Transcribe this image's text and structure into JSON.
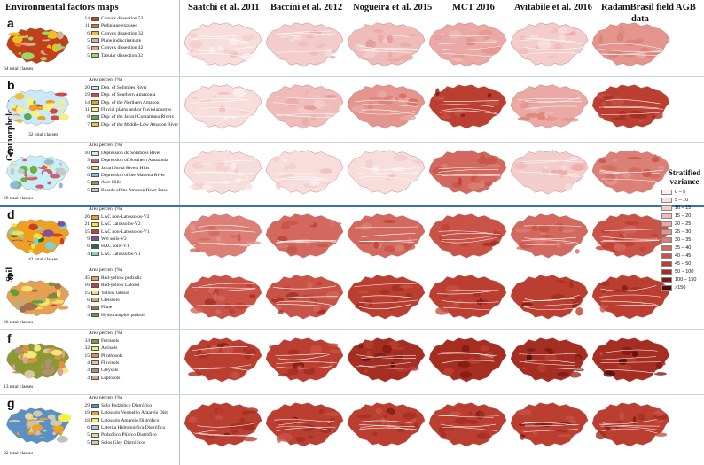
{
  "header": {
    "env_title": "Environmental factors maps",
    "columns": [
      "Saatchi et al. 2011",
      "Baccini et al. 2012",
      "Nogueira et al. 2015",
      "MCT 2016",
      "Avitabile et al.  2016",
      "RadamBrasil field AGB",
      "data"
    ]
  },
  "side_labels": {
    "geomorphology": "Geomorphology",
    "soil": "Soil"
  },
  "area_percent_label": "Area percent (%)",
  "rows": [
    {
      "letter": "a",
      "total": "64 total classes",
      "has_area_label": false,
      "legend": [
        {
          "pct": "14",
          "label": "Convex dissection 53",
          "color": "#c0401a"
        },
        {
          "pct": "11",
          "label": "Pediplane exposed",
          "color": "#e07a28"
        },
        {
          "pct": "6",
          "label": "Convex dissection 32",
          "color": "#f0c020"
        },
        {
          "pct": "5",
          "label": "Plane indiscriminate",
          "color": "#c8b8a0"
        },
        {
          "pct": "5",
          "label": "Convex dissection 42",
          "color": "#f09a80"
        },
        {
          "pct": "5",
          "label": "Tabular dissection 32",
          "color": "#9ad86a"
        }
      ]
    },
    {
      "letter": "b",
      "total": "32 total classes",
      "has_area_label": true,
      "legend": [
        {
          "pct": "20",
          "label": "Dep. of Solimões River",
          "color": "#c9e8f8"
        },
        {
          "pct": "19",
          "label": "Dep. of Southern Amazonia",
          "color": "#d04848"
        },
        {
          "pct": "14",
          "label": "Dep. of the Northern Amazon",
          "color": "#f0a020"
        },
        {
          "pct": "11",
          "label": "Fluvial plains and/or fluviolacustres",
          "color": "#f6f08a"
        },
        {
          "pct": "8",
          "label": "Dep. of the Javari-Contamana Rivers",
          "color": "#5aa85a"
        },
        {
          "pct": "7",
          "label": "Dep. of the Middle-Low Amazon River",
          "color": "#f0c040"
        }
      ]
    },
    {
      "letter": "c",
      "total": "69 total classes",
      "has_area_label": true,
      "legend": [
        {
          "pct": "10",
          "label": "Depression do Solimões River",
          "color": "#c8eef8"
        },
        {
          "pct": "9",
          "label": "Depression of Southern Amazonia",
          "color": "#d06070"
        },
        {
          "pct": "6",
          "label": "Javari/Juruá Rivers Hills",
          "color": "#f0e070"
        },
        {
          "pct": "6",
          "label": "Depression of the Madeira River",
          "color": "#90b8d8"
        },
        {
          "pct": "5",
          "label": "Acre Hills",
          "color": "#70b040"
        },
        {
          "pct": "5",
          "label": "Boards of the Amazon River Bass",
          "color": "#c8c8c8"
        }
      ]
    },
    {
      "letter": "d",
      "total": "42 total classes",
      "has_area_label": true,
      "legend": [
        {
          "pct": "26",
          "label": "LAC non-Latossolos-V2",
          "color": "#f0a020"
        },
        {
          "pct": "21",
          "label": "LAC Latossolos-V2",
          "color": "#f8e040"
        },
        {
          "pct": "15",
          "label": "LAC non-Latossolos-V1",
          "color": "#d04020"
        },
        {
          "pct": "9",
          "label": "Wet soils-V2",
          "color": "#8050a0"
        },
        {
          "pct": "6",
          "label": "HAC soils-V1",
          "color": "#207040"
        },
        {
          "pct": "4",
          "label": "LAC Latossolos-V1",
          "color": "#80d0d0"
        }
      ]
    },
    {
      "letter": "e",
      "total": "26 total classes",
      "has_area_label": true,
      "legend": [
        {
          "pct": "45",
          "label": "Red-yellow podzolic",
          "color": "#e8a050"
        },
        {
          "pct": "16",
          "label": "Red-yellow Latosol",
          "color": "#c04040"
        },
        {
          "pct": "15",
          "label": "Yellow latosol",
          "color": "#f8e070"
        },
        {
          "pct": "6",
          "label": "Gleissolo",
          "color": "#c8a878"
        },
        {
          "pct": "9",
          "label": "Plane",
          "color": "#a07050"
        },
        {
          "pct": "4",
          "label": "Hydromorphic podzol",
          "color": "#60a030"
        }
      ]
    },
    {
      "letter": "f",
      "total": "13 total classes",
      "has_area_label": true,
      "legend": [
        {
          "pct": "34",
          "label": "Ferrasols",
          "color": "#8a9a30"
        },
        {
          "pct": "32",
          "label": "Acrisols",
          "color": "#f0e878"
        },
        {
          "pct": "15",
          "label": "Plinthosols",
          "color": "#e09040"
        },
        {
          "pct": "4",
          "label": "Fluvisols",
          "color": "#d8c8a0"
        },
        {
          "pct": "4",
          "label": "Gleysols",
          "color": "#b09070"
        },
        {
          "pct": "4",
          "label": "Leptosols",
          "color": "#e0a090"
        }
      ]
    },
    {
      "letter": "g",
      "total": "32 total classes",
      "has_area_label": true,
      "legend": [
        {
          "pct": "29",
          "label": "Solo Podzólico Distrófico",
          "color": "#5a90c8"
        },
        {
          "pct": "19",
          "label": "Latossolo Vermelho Amarelo Dist.",
          "color": "#f0a020"
        },
        {
          "pct": "18",
          "label": "Latossolo Amarelo Distrófico",
          "color": "#f8f040"
        },
        {
          "pct": "6",
          "label": "Laterita Hidromórfica Distrófica",
          "color": "#c0c0c0"
        },
        {
          "pct": "5",
          "label": "Podzólico Plínico Distrófico",
          "color": "#e8d8a0"
        },
        {
          "pct": "5",
          "label": "Solos Gley Distróficos",
          "color": "#d8c8a8"
        }
      ]
    }
  ],
  "variance_legend": {
    "title1": "Stratified",
    "title2": "variance",
    "classes": [
      {
        "label": "0 – 5",
        "color": "#fbeeee"
      },
      {
        "label": "5 – 10",
        "color": "#f7dedd"
      },
      {
        "label": "10 – 15",
        "color": "#f3cdcb"
      },
      {
        "label": "15 – 20",
        "color": "#efbcb9"
      },
      {
        "label": "20 – 25",
        "color": "#eaa9a4"
      },
      {
        "label": "25 – 30",
        "color": "#e4958e"
      },
      {
        "label": "30 – 35",
        "color": "#dc7f76"
      },
      {
        "label": "35 – 40",
        "color": "#d3695e"
      },
      {
        "label": "40 – 45",
        "color": "#c85346"
      },
      {
        "label": "45 – 50",
        "color": "#bb3f31"
      },
      {
        "label": "50 – 100",
        "color": "#a52e22"
      },
      {
        "label": "100 – 150",
        "color": "#7f1a12"
      },
      {
        "label": ">150",
        "color": "#4e0b07"
      }
    ]
  },
  "intensity": [
    [
      1,
      2,
      3,
      4,
      2,
      5
    ],
    [
      1,
      3,
      5,
      9,
      4,
      9
    ],
    [
      1,
      1,
      1,
      7,
      2,
      6
    ],
    [
      6,
      7,
      7,
      8,
      7,
      8
    ],
    [
      8,
      8,
      9,
      9,
      9,
      9
    ],
    [
      9,
      9,
      10,
      10,
      10,
      10
    ],
    [
      9,
      9,
      9,
      9,
      9,
      9
    ]
  ]
}
